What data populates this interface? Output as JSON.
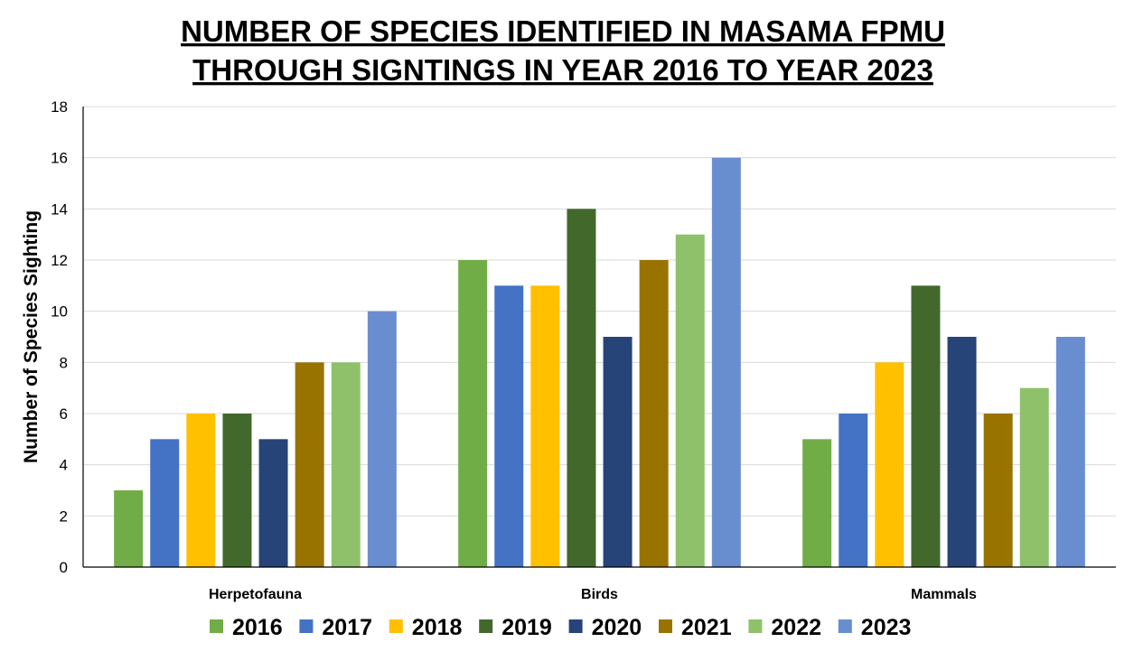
{
  "chart_data": {
    "type": "bar",
    "title": [
      "NUMBER OF SPECIES IDENTIFIED IN MASAMA FPMU",
      "THROUGH SIGNTINGS IN YEAR 2016 TO YEAR 2023"
    ],
    "xlabel": "",
    "ylabel": "Number of Species Sighting",
    "ylim": [
      0,
      18
    ],
    "yticks": [
      0,
      2,
      4,
      6,
      8,
      10,
      12,
      14,
      16,
      18
    ],
    "grid": true,
    "legend_position": "bottom",
    "categories": [
      "Herpetofauna",
      "Birds",
      "Mammals"
    ],
    "series": [
      {
        "name": "2016",
        "color": "#70ad47",
        "values": [
          3,
          12,
          5
        ]
      },
      {
        "name": "2017",
        "color": "#4472c4",
        "values": [
          5,
          11,
          6
        ]
      },
      {
        "name": "2018",
        "color": "#ffc000",
        "values": [
          6,
          11,
          8
        ]
      },
      {
        "name": "2019",
        "color": "#43682b",
        "values": [
          6,
          14,
          11
        ]
      },
      {
        "name": "2020",
        "color": "#264478",
        "values": [
          5,
          9,
          9
        ]
      },
      {
        "name": "2021",
        "color": "#997300",
        "values": [
          8,
          12,
          6
        ]
      },
      {
        "name": "2022",
        "color": "#8fc16b",
        "values": [
          8,
          13,
          7
        ]
      },
      {
        "name": "2023",
        "color": "#698ed0",
        "values": [
          10,
          16,
          9
        ]
      }
    ]
  }
}
